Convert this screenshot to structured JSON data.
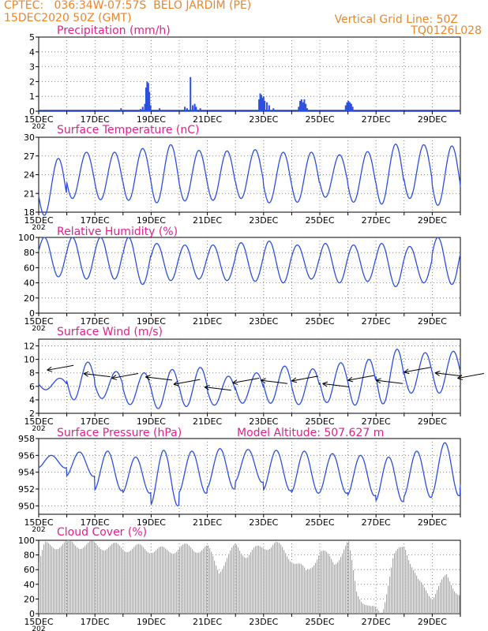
{
  "header": {
    "line1_left": "CPTEC:   036:34W-07:57S  BELO JARDIM (PE)",
    "line2_left": "15DEC2020 50Z (GMT)",
    "line1_right": "Vertical Grid Line: 50Z",
    "line2_right": "TQ0126L028",
    "model_altitude": "Model Altitude: 507.627 m"
  },
  "colors": {
    "header": "#e8862a",
    "title": "#e0208a",
    "line": "#2b4fe0",
    "bar": "#2b4fe0",
    "cloud": "#a8a8a8",
    "arrow": "#000000"
  },
  "x_axis": {
    "range_days": [
      0,
      15
    ],
    "tick_days": [
      0,
      2,
      4,
      6,
      8,
      10,
      12,
      14
    ],
    "tick_labels": [
      "15DEC",
      "17DEC",
      "19DEC",
      "21DEC",
      "23DEC",
      "25DEC",
      "27DEC",
      "29DEC"
    ],
    "year_fragment": "202"
  },
  "chart_data": [
    {
      "type": "bar",
      "title": "Precipitation (mm/h)",
      "ylim": [
        0,
        5
      ],
      "yticks": [
        0,
        1,
        2,
        3,
        4,
        5
      ],
      "grid": true,
      "x": [
        2.93,
        3.0,
        3.62,
        3.7,
        3.78,
        3.82,
        3.86,
        3.9,
        3.94,
        3.98,
        4.3,
        5.2,
        5.28,
        5.4,
        5.48,
        5.55,
        5.6,
        5.75,
        7.84,
        7.88,
        7.92,
        7.96,
        8.0,
        8.04,
        8.12,
        8.2,
        8.35,
        9.25,
        9.3,
        9.35,
        9.4,
        9.45,
        9.5,
        9.55,
        10.92,
        10.97,
        11.02,
        11.07,
        11.12,
        11.17
      ],
      "values": [
        0.2,
        0.1,
        0.15,
        0.3,
        0.5,
        1.6,
        2.0,
        1.9,
        1.3,
        0.4,
        0.2,
        0.3,
        0.2,
        2.3,
        0.4,
        0.5,
        0.3,
        0.2,
        0.8,
        1.2,
        1.1,
        0.9,
        1.0,
        0.7,
        0.6,
        0.4,
        0.2,
        0.3,
        0.7,
        0.8,
        0.6,
        0.8,
        0.5,
        0.2,
        0.4,
        0.6,
        0.7,
        0.6,
        0.5,
        0.3
      ]
    },
    {
      "type": "line",
      "title": "Surface Temperature (nC)",
      "ylim": [
        18,
        30
      ],
      "yticks": [
        18,
        21,
        24,
        27,
        30
      ],
      "grid": true,
      "daily_max": [
        26.6,
        27.6,
        27.6,
        28.2,
        28.8,
        27.9,
        27.8,
        28.0,
        27.6,
        27.6,
        27.2,
        27.7,
        28.9,
        28.8,
        28.6,
        27.5
      ],
      "daily_min": [
        17.5,
        20.2,
        20.0,
        19.9,
        19.5,
        19.8,
        19.9,
        20.2,
        19.5,
        19.6,
        20.4,
        19.6,
        19.3,
        20.2,
        19.1,
        19.1
      ]
    },
    {
      "type": "line",
      "title": "Relative Humidity (%)",
      "ylim": [
        0,
        100
      ],
      "yticks": [
        0,
        20,
        40,
        60,
        80,
        100
      ],
      "grid": true,
      "daily_max": [
        100,
        100,
        100,
        100,
        92,
        90,
        90,
        93,
        95,
        90,
        92,
        90,
        92,
        88,
        100,
        96
      ],
      "daily_min": [
        48,
        45,
        45,
        38,
        43,
        45,
        43,
        42,
        40,
        45,
        40,
        42,
        35,
        40,
        38,
        40
      ]
    },
    {
      "type": "line",
      "title": "Surface Wind (m/s)",
      "ylim": [
        2,
        13
      ],
      "yticks": [
        2,
        4,
        6,
        8,
        10,
        12
      ],
      "grid": true,
      "note": "speed line with wind direction arrows",
      "daily_max": [
        7.2,
        9.6,
        8.2,
        8.0,
        8.5,
        8.8,
        7.5,
        8.0,
        9.0,
        8.6,
        9.5,
        10.0,
        11.5,
        11.0,
        11.2,
        11.4
      ],
      "daily_min": [
        5.5,
        4.0,
        4.2,
        3.3,
        2.7,
        3.0,
        3.2,
        3.5,
        3.5,
        3.3,
        3.6,
        3.2,
        3.4,
        5.0,
        5.0,
        5.6
      ],
      "arrow_days": [
        0.3,
        1.6,
        2.6,
        3.8,
        4.8,
        5.9,
        6.9,
        7.9,
        9.0,
        10.1,
        11.0,
        12.0,
        13.0,
        14.1,
        14.9
      ],
      "arrow_levels": [
        8.4,
        7.9,
        7.2,
        7.4,
        6.3,
        5.9,
        6.5,
        6.9,
        6.8,
        6.4,
        6.9,
        6.9,
        8.1,
        8.0,
        7.2
      ]
    },
    {
      "type": "line",
      "title": "Surface Pressure (hPa)",
      "ylim": [
        949,
        958
      ],
      "yticks": [
        950,
        952,
        954,
        956,
        958
      ],
      "grid": true,
      "daily_max": [
        956.0,
        956.4,
        956.5,
        955.8,
        956.6,
        956.5,
        956.8,
        956.7,
        956.6,
        956.5,
        956.2,
        956.0,
        955.8,
        956.5,
        957.5,
        957.0
      ],
      "daily_min": [
        954.5,
        953.5,
        951.8,
        951.5,
        950.0,
        951.5,
        952.0,
        952.8,
        951.8,
        951.5,
        951.5,
        951.2,
        950.5,
        951.0,
        951.2,
        952.5
      ]
    },
    {
      "type": "bar",
      "title": "Cloud Cover (%)",
      "ylim": [
        0,
        100
      ],
      "yticks": [
        0,
        20,
        40,
        60,
        80,
        100
      ],
      "grid": true,
      "profile_days": [
        0,
        0.2,
        1.0,
        2.0,
        3.0,
        4.0,
        4.5,
        5.0,
        6.0,
        6.4,
        7.0,
        7.4,
        8.0,
        8.4,
        9.0,
        9.5,
        10.0,
        10.5,
        11.0,
        11.3,
        11.8,
        12.2,
        12.6,
        13.0,
        13.5,
        14.0,
        14.5,
        15.0
      ],
      "profile_values": [
        70,
        92,
        95,
        93,
        90,
        88,
        85,
        90,
        88,
        60,
        92,
        80,
        92,
        95,
        75,
        55,
        85,
        70,
        95,
        30,
        5,
        3,
        75,
        95,
        40,
        25,
        50,
        25
      ]
    }
  ]
}
